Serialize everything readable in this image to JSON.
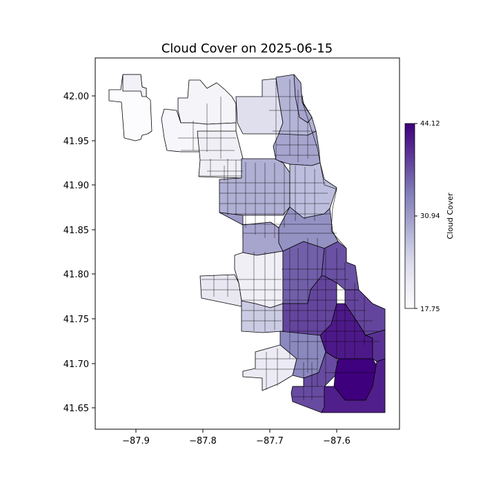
{
  "title": "Cloud Cover on 2025-06-15",
  "x_ticks": [
    "−87.9",
    "−87.8",
    "−87.7",
    "−87.6"
  ],
  "y_ticks": [
    "42.00",
    "41.95",
    "41.90",
    "41.85",
    "41.80",
    "41.75",
    "41.70",
    "41.65"
  ],
  "colorbar": {
    "label": "Cloud Cover",
    "ticks": [
      "44.12",
      "30.94",
      "17.75"
    ],
    "colors": [
      "#fcfbfd",
      "#efedf5",
      "#dadaeb",
      "#bcbddc",
      "#9e9ac8",
      "#807dba",
      "#6a51a3",
      "#54278f",
      "#3f007d"
    ]
  },
  "chart_data": {
    "type": "heatmap",
    "title": "Cloud Cover on 2025-06-15",
    "xlim": [
      -87.965,
      -87.51
    ],
    "ylim": [
      41.625,
      42.045
    ],
    "x_ticks": [
      -87.9,
      -87.8,
      -87.7,
      -87.6
    ],
    "y_ticks": [
      42.0,
      41.95,
      41.9,
      41.85,
      41.8,
      41.75,
      41.7,
      41.65
    ],
    "colorbar_label": "Cloud Cover",
    "value_range": [
      17.75,
      44.12
    ],
    "colormap": "Purples",
    "regions": [
      {
        "lon": -87.905,
        "lat": 41.99,
        "value": 17.75
      },
      {
        "lon": -87.905,
        "lat": 42.02,
        "value": 20.0
      },
      {
        "lon": -87.81,
        "lat": 41.985,
        "value": 19.5
      },
      {
        "lon": -87.79,
        "lat": 41.955,
        "value": 19.0
      },
      {
        "lon": -87.755,
        "lat": 41.93,
        "value": 20.5
      },
      {
        "lon": -87.71,
        "lat": 42.0,
        "value": 23.5
      },
      {
        "lon": -87.675,
        "lat": 41.98,
        "value": 28.5
      },
      {
        "lon": -87.655,
        "lat": 42.0,
        "value": 30.0
      },
      {
        "lon": -87.665,
        "lat": 41.945,
        "value": 30.0
      },
      {
        "lon": -87.7,
        "lat": 41.905,
        "value": 29.0
      },
      {
        "lon": -87.65,
        "lat": 41.9,
        "value": 27.5
      },
      {
        "lon": -87.735,
        "lat": 41.865,
        "value": 31.0
      },
      {
        "lon": -87.685,
        "lat": 41.84,
        "value": 30.0
      },
      {
        "lon": -87.635,
        "lat": 41.855,
        "value": 32.0
      },
      {
        "lon": -87.73,
        "lat": 41.8,
        "value": 20.5
      },
      {
        "lon": -87.775,
        "lat": 41.787,
        "value": 22.0
      },
      {
        "lon": -87.7,
        "lat": 41.76,
        "value": 26.0
      },
      {
        "lon": -87.665,
        "lat": 41.79,
        "value": 36.5
      },
      {
        "lon": -87.61,
        "lat": 41.8,
        "value": 37.5
      },
      {
        "lon": -87.575,
        "lat": 41.78,
        "value": 38.5
      },
      {
        "lon": -87.64,
        "lat": 41.745,
        "value": 38.5
      },
      {
        "lon": -87.585,
        "lat": 41.735,
        "value": 42.0
      },
      {
        "lon": -87.545,
        "lat": 41.73,
        "value": 40.0
      },
      {
        "lon": -87.665,
        "lat": 41.705,
        "value": 33.0
      },
      {
        "lon": -87.705,
        "lat": 41.685,
        "value": 21.5
      },
      {
        "lon": -87.615,
        "lat": 41.68,
        "value": 38.0
      },
      {
        "lon": -87.575,
        "lat": 41.68,
        "value": 44.12
      },
      {
        "lon": -87.54,
        "lat": 41.665,
        "value": 41.5
      }
    ]
  }
}
